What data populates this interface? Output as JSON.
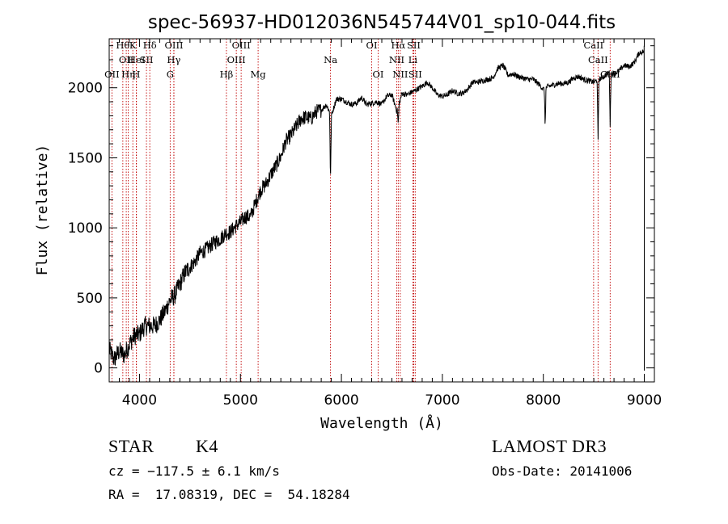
{
  "chart_data": {
    "type": "line",
    "title": "spec-56937-HD012036N545744V01_sp10-044.fits",
    "xlabel": "Wavelength (Å)",
    "ylabel": "Flux (relative)",
    "xlim": [
      3700,
      9100
    ],
    "ylim": [
      -100,
      2350
    ],
    "xticks": [
      4000,
      5000,
      6000,
      7000,
      8000,
      9000
    ],
    "yticks": [
      0,
      500,
      1000,
      1500,
      2000
    ],
    "grid": false,
    "series": [
      {
        "x": [
          3700,
          3750,
          3800,
          3850,
          3900,
          3950,
          4000,
          4050,
          4100,
          4150,
          4200,
          4250,
          4300,
          4350,
          4400,
          4450,
          4500,
          4550,
          4600,
          4650,
          4700,
          4750,
          4800,
          4850,
          4900,
          4950,
          5000,
          5050,
          5100,
          5150,
          5200,
          5250,
          5300,
          5350,
          5400,
          5450,
          5500,
          5550,
          5600,
          5650,
          5700,
          5750,
          5800,
          5850,
          5900,
          5950,
          6000,
          6050,
          6100,
          6150,
          6200,
          6250,
          6300,
          6350,
          6400,
          6450,
          6500,
          6550,
          6600,
          6650,
          6700,
          6750,
          6800,
          6850,
          6900,
          6950,
          7000,
          7050,
          7100,
          7150,
          7200,
          7250,
          7300,
          7350,
          7400,
          7450,
          7500,
          7550,
          7600,
          7650,
          7700,
          7750,
          7800,
          7850,
          7900,
          7950,
          8000,
          8050,
          8100,
          8150,
          8200,
          8250,
          8300,
          8350,
          8400,
          8450,
          8500,
          8550,
          8600,
          8650,
          8700,
          8750,
          8800,
          8850,
          8900,
          8950,
          9000
        ],
        "y": [
          130,
          60,
          120,
          90,
          170,
          230,
          240,
          300,
          300,
          300,
          340,
          400,
          480,
          520,
          600,
          680,
          720,
          760,
          820,
          840,
          870,
          900,
          920,
          960,
          970,
          1010,
          1040,
          1080,
          1080,
          1180,
          1270,
          1310,
          1380,
          1440,
          1510,
          1620,
          1660,
          1720,
          1780,
          1790,
          1780,
          1830,
          1840,
          1880,
          1800,
          1920,
          1920,
          1900,
          1880,
          1890,
          1930,
          1880,
          1890,
          1900,
          1880,
          1940,
          1950,
          1830,
          1960,
          1950,
          1970,
          1990,
          2010,
          2040,
          2000,
          1950,
          1940,
          1950,
          1980,
          1960,
          1960,
          1990,
          2040,
          2040,
          2050,
          2060,
          2070,
          2140,
          2160,
          2090,
          2100,
          2080,
          2070,
          2060,
          2060,
          2030,
          1990,
          2010,
          2020,
          2030,
          2030,
          2040,
          2070,
          2080,
          2060,
          2050,
          2040,
          2060,
          2080,
          2110,
          2100,
          2120,
          2160,
          2150,
          2180,
          2250,
          2260
        ]
      }
    ],
    "absorption_dips": [
      {
        "x": 5892,
        "y": 1330
      },
      {
        "x": 6563,
        "y": 1740
      },
      {
        "x": 8018,
        "y": 1720
      },
      {
        "x": 8542,
        "y": 1620
      },
      {
        "x": 8662,
        "y": 1730
      }
    ],
    "spectral_lines": [
      {
        "x": 3835,
        "label": "Hθ",
        "row": 0
      },
      {
        "x": 3934,
        "label": "K",
        "row": 0
      },
      {
        "x": 4102,
        "label": "Hδ",
        "row": 0
      },
      {
        "x": 4341,
        "label": "OIII",
        "row": 0
      },
      {
        "x": 5007,
        "label": "OIII",
        "row": 0
      },
      {
        "x": 6300,
        "label": "OI",
        "row": 0
      },
      {
        "x": 6563,
        "label": "Hα",
        "row": 0
      },
      {
        "x": 6716,
        "label": "SII",
        "row": 0
      },
      {
        "x": 8498,
        "label": "CaII",
        "row": 0
      },
      {
        "x": 3869,
        "label": "OII",
        "row": 1
      },
      {
        "x": 3970,
        "label": "HeI",
        "row": 1
      },
      {
        "x": 4069,
        "label": "SII",
        "row": 1
      },
      {
        "x": 4340,
        "label": "Hγ",
        "row": 1
      },
      {
        "x": 4959,
        "label": "OIII",
        "row": 1
      },
      {
        "x": 5892,
        "label": "Na",
        "row": 1
      },
      {
        "x": 6548,
        "label": "NII",
        "row": 1
      },
      {
        "x": 6708,
        "label": "Li",
        "row": 1
      },
      {
        "x": 8542,
        "label": "CaII",
        "row": 1
      },
      {
        "x": 3727,
        "label": "OII",
        "row": 2
      },
      {
        "x": 3889,
        "label": "Hη",
        "row": 2
      },
      {
        "x": 3968,
        "label": "H",
        "row": 2
      },
      {
        "x": 4304,
        "label": "G",
        "row": 2
      },
      {
        "x": 4861,
        "label": "Hβ",
        "row": 2
      },
      {
        "x": 5175,
        "label": "Mg",
        "row": 2
      },
      {
        "x": 6364,
        "label": "OI",
        "row": 2
      },
      {
        "x": 6583,
        "label": "NII",
        "row": 2
      },
      {
        "x": 6731,
        "label": "SII",
        "row": 2
      },
      {
        "x": 8662,
        "label": "CaII",
        "row": 2
      }
    ],
    "line_color": "#000000",
    "marker_color": "#c00000"
  },
  "info": {
    "class": "STAR",
    "subclass": "K4",
    "survey": "LAMOST DR3",
    "cz": "cz = −117.5 ± 6.1 km/s",
    "obs_date": "Obs-Date: 20141006",
    "coords": "RA =  17.08319, DEC =  54.18284"
  }
}
